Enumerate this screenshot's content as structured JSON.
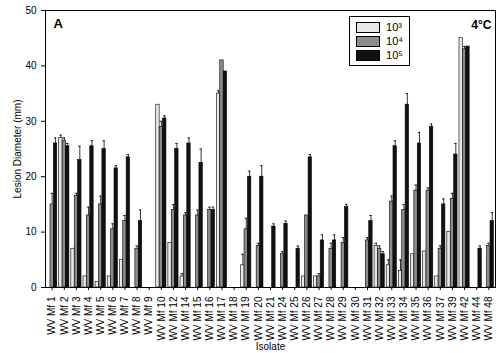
{
  "chart_data": {
    "type": "bar",
    "x_label": "Isolate",
    "y_label": "Lesion Diameter (mm)",
    "annotations": [
      {
        "text": "A"
      },
      {
        "text": "4°C"
      }
    ],
    "categories": [
      "WV Mf 1",
      "WV Mf 2",
      "WV Mf 3",
      "WV Mf 4",
      "WV Mf 5",
      "WV Mf 6",
      "WV Mf 7",
      "WV Mf 8",
      "WV Mf 9",
      "WV Mf 10",
      "WV Mf 12",
      "WV Mf 14",
      "WV Mf 15",
      "WV Mf 16",
      "WV Mf 17",
      "WV Mf 18",
      "WV Mf 19",
      "WV Mf 20",
      "WV Mf 21",
      "WV Mf 24",
      "WV Mf 25",
      "WV Mf 26",
      "WV Mf 27",
      "WV Mf 28",
      "WV Mf 29",
      "WV Mf 30",
      "WV Mf 31",
      "WV Mf 32",
      "WV Mf 33",
      "WV Mf 34",
      "WV Mf 35",
      "WV Mf 36",
      "WV Mf 37",
      "WV Mf 39",
      "WV Mf 42",
      "WV Mf 44",
      "WV Mf 48"
    ],
    "series": [
      {
        "name": "10³",
        "color": "#e8e8e8",
        "values": [
          0,
          27,
          7,
          2,
          1,
          2,
          5,
          0,
          0,
          33,
          8,
          2,
          0,
          0,
          35,
          0,
          4,
          0,
          0,
          0,
          0,
          2,
          2,
          0,
          0,
          0,
          0,
          7.5,
          4,
          3,
          6,
          6.5,
          2,
          10,
          45,
          0,
          0
        ],
        "errors": [
          0,
          0.5,
          0,
          0,
          0,
          0,
          0,
          0,
          0,
          0,
          0,
          0.5,
          0,
          0,
          0.5,
          0,
          2,
          0,
          0,
          0,
          0,
          0,
          0,
          0,
          0,
          0,
          0,
          0.5,
          1,
          2,
          0,
          0,
          0,
          0,
          0,
          0,
          0
        ]
      },
      {
        "name": "10⁴",
        "color": "#8c8c8c",
        "values": [
          15,
          26.5,
          16.5,
          13,
          15,
          10.5,
          12,
          7,
          0,
          29,
          14,
          13,
          13,
          14,
          41,
          0,
          10.5,
          7.5,
          0,
          6,
          0,
          13,
          2,
          7,
          8,
          0,
          8.5,
          7,
          15.5,
          14,
          17.5,
          17.5,
          7,
          16,
          43,
          0,
          7.5
        ],
        "errors": [
          2,
          0.5,
          0.5,
          1.5,
          1.5,
          1,
          1,
          0.5,
          0,
          1,
          1,
          0.5,
          1,
          0.5,
          0,
          0,
          2,
          0.5,
          0,
          0.5,
          0,
          0,
          0.5,
          1,
          1,
          0,
          0.5,
          0.5,
          1,
          1,
          1,
          0.5,
          0.5,
          1,
          0.5,
          0,
          0.5
        ]
      },
      {
        "name": "10⁵",
        "color": "#111111",
        "values": [
          26,
          25.5,
          23,
          25.5,
          25,
          21.5,
          23.5,
          12,
          0,
          30.5,
          25,
          26,
          22.5,
          14,
          39,
          0,
          20,
          20,
          11,
          11.5,
          7,
          23.5,
          8.5,
          8.5,
          14.5,
          0,
          12,
          6,
          25.5,
          33,
          26,
          29,
          15,
          24,
          43.5,
          7,
          12
        ],
        "errors": [
          1,
          0.5,
          2.5,
          1,
          1.5,
          0.5,
          0.5,
          2,
          0,
          0.5,
          1,
          1,
          2.5,
          0.5,
          0,
          0,
          1,
          2,
          0.5,
          0.5,
          0.5,
          0.5,
          1,
          1,
          0.5,
          0,
          1,
          0.5,
          1,
          2,
          2,
          0.5,
          1,
          2,
          0,
          0.5,
          1.5
        ]
      }
    ],
    "ylim": [
      0,
      50
    ],
    "yticks": [
      0,
      10,
      20,
      30,
      40,
      50
    ],
    "legend": "top-right",
    "grid": false
  }
}
